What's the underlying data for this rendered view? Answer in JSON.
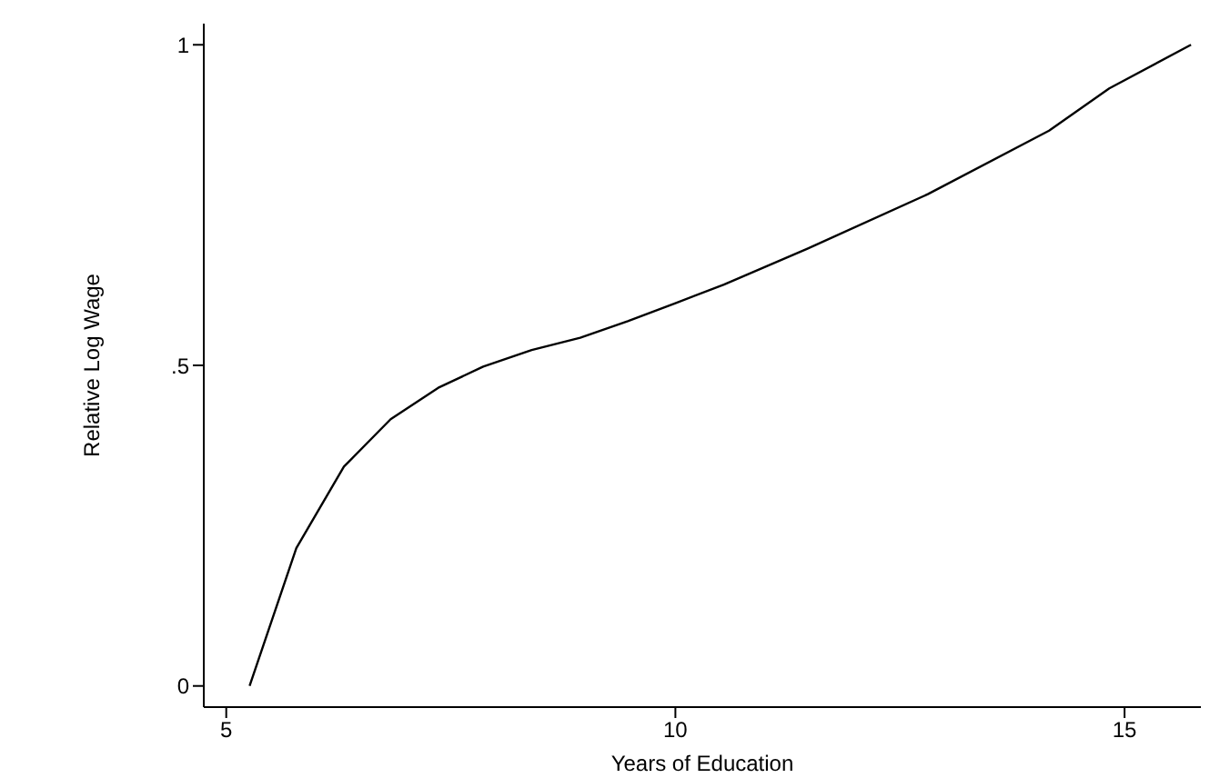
{
  "chart_data": {
    "type": "line",
    "xlabel": "Years of Education",
    "ylabel": "Relative Log Wage",
    "x": [
      5.26,
      5.78,
      6.31,
      6.83,
      7.36,
      7.86,
      8.4,
      8.94,
      9.47,
      10.0,
      10.54,
      11.47,
      12.81,
      14.16,
      14.83,
      15.74
    ],
    "series": [
      {
        "color": "#000000",
        "values": [
          0,
          0.215,
          0.342,
          0.416,
          0.465,
          0.498,
          0.524,
          0.543,
          0.569,
          0.597,
          0.626,
          0.682,
          0.767,
          0.866,
          0.932,
          1.0
        ]
      }
    ],
    "xlim": [
      4.75,
      15.85
    ],
    "xticks": [
      5,
      10,
      15
    ],
    "ylim": [
      -0.033,
      1.033
    ],
    "yticks": [
      0,
      {
        "value": 0.5,
        "label": ".5"
      },
      1
    ],
    "line_style": "solid"
  }
}
